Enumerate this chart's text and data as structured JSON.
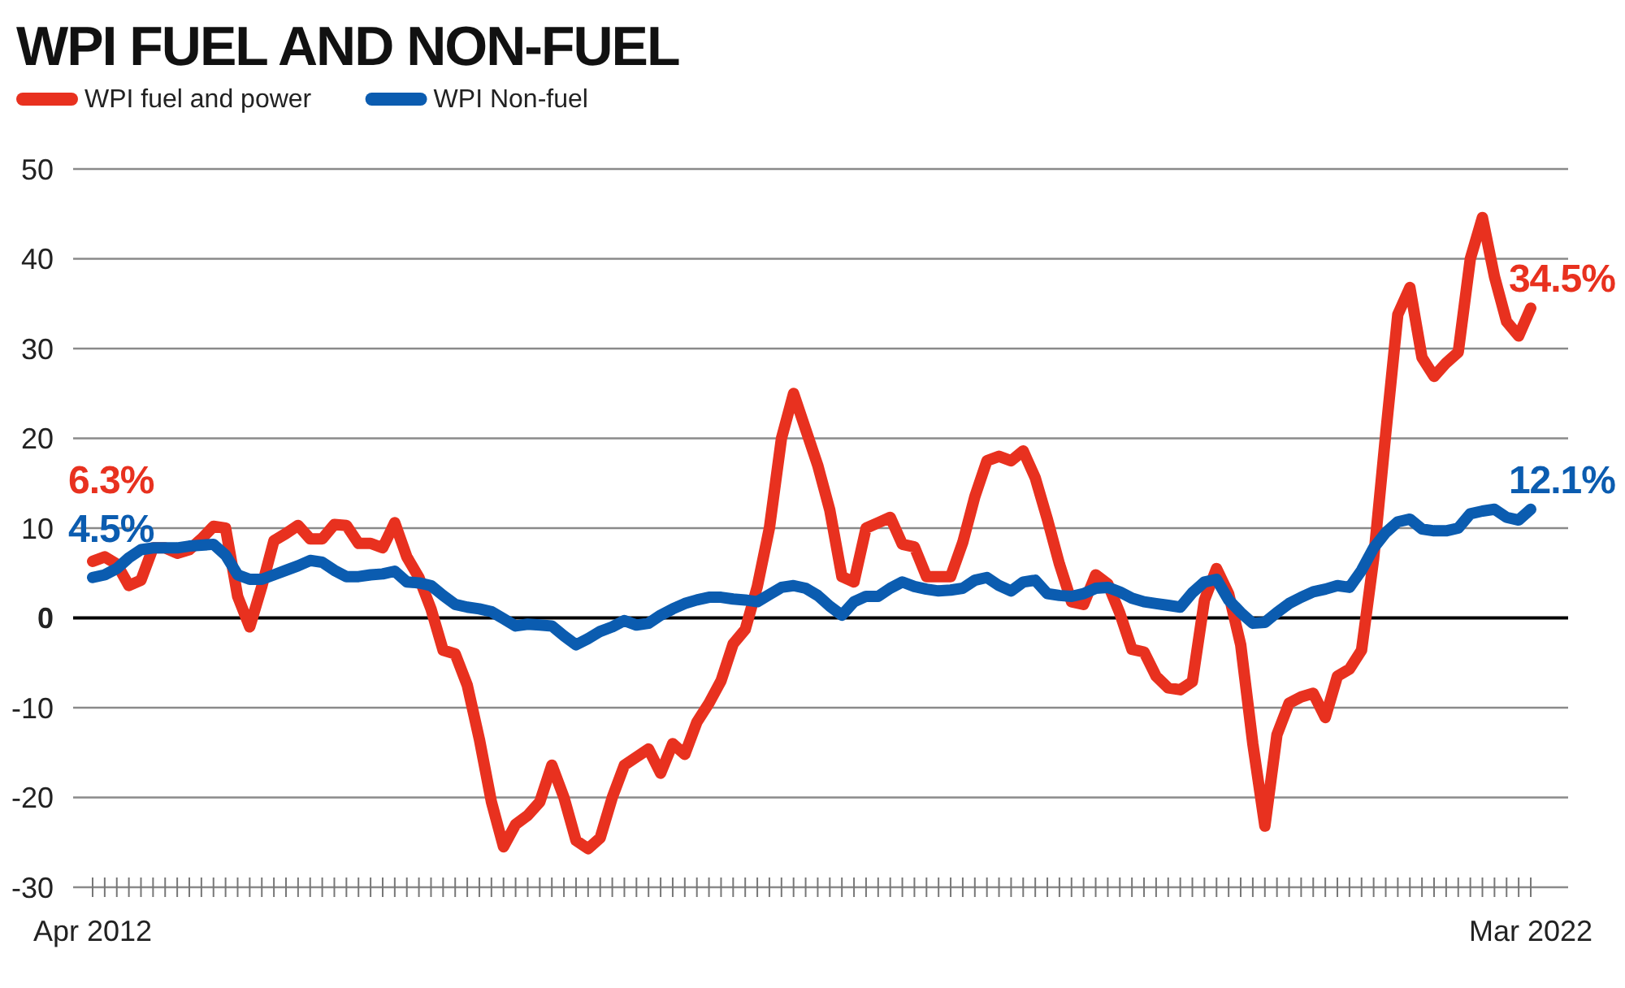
{
  "chart_data": {
    "type": "line",
    "title": "WPI FUEL AND NON-FUEL",
    "categories": [
      "Apr 2012",
      null,
      null,
      null,
      null,
      null,
      null,
      null,
      null,
      null,
      null,
      null,
      null,
      null,
      null,
      null,
      null,
      null,
      null,
      null,
      null,
      null,
      null,
      null,
      null,
      null,
      null,
      null,
      null,
      null,
      null,
      null,
      null,
      null,
      null,
      null,
      null,
      null,
      null,
      null,
      null,
      null,
      null,
      null,
      null,
      null,
      null,
      null,
      null,
      null,
      null,
      null,
      null,
      null,
      null,
      null,
      null,
      null,
      null,
      null,
      null,
      null,
      null,
      null,
      null,
      null,
      null,
      null,
      null,
      null,
      null,
      null,
      null,
      null,
      null,
      null,
      null,
      null,
      null,
      null,
      null,
      null,
      null,
      null,
      null,
      null,
      null,
      null,
      null,
      null,
      null,
      null,
      null,
      null,
      null,
      null,
      null,
      null,
      null,
      null,
      null,
      null,
      null,
      null,
      null,
      null,
      null,
      null,
      null,
      null,
      null,
      null,
      null,
      null,
      null,
      null,
      null,
      null,
      null,
      "Mar 2022"
    ],
    "series": [
      {
        "name": "WPI fuel and power",
        "color": "#e8311f",
        "values": [
          6.3,
          6.8,
          6.0,
          3.6,
          4.2,
          7.8,
          7.8,
          7.2,
          7.6,
          8.8,
          10.2,
          10.0,
          2.4,
          -1.0,
          3.5,
          8.6,
          9.4,
          10.3,
          8.8,
          8.8,
          10.4,
          10.3,
          8.3,
          8.3,
          7.8,
          10.6,
          6.8,
          4.5,
          1.0,
          -3.6,
          -4.0,
          -7.5,
          -13.5,
          -20.5,
          -25.5,
          -23.0,
          -22.0,
          -20.5,
          -16.4,
          -20.0,
          -24.8,
          -25.7,
          -24.5,
          -20.0,
          -16.4,
          -15.5,
          -14.6,
          -17.3,
          -14.0,
          -15.2,
          -11.6,
          -9.5,
          -7.0,
          -2.9,
          -1.3,
          3.5,
          10.0,
          20.0,
          25.0,
          21.0,
          17.0,
          12.0,
          4.6,
          4.0,
          10.0,
          10.6,
          11.2,
          8.2,
          7.9,
          4.6,
          4.6,
          4.6,
          8.4,
          13.5,
          17.5,
          18.0,
          17.5,
          18.6,
          15.6,
          11.0,
          6.0,
          1.8,
          1.5,
          4.8,
          3.8,
          0.5,
          -3.5,
          -3.8,
          -6.5,
          -7.8,
          -8.0,
          -7.1,
          2.0,
          5.5,
          2.7,
          -3.0,
          -14.0,
          -23.2,
          -13.0,
          -9.5,
          -8.8,
          -8.4,
          -11.1,
          -6.5,
          -5.7,
          -3.6,
          6.6,
          20.5,
          33.8,
          36.8,
          29.0,
          26.9,
          28.4,
          29.6,
          40.0,
          44.6,
          38.0,
          33.0,
          31.4,
          34.5
        ],
        "value_labels": [
          "6.3%",
          null,
          null,
          null,
          null,
          null,
          null,
          null,
          null,
          null,
          null,
          null,
          null,
          null,
          null,
          null,
          null,
          null,
          null,
          null,
          null,
          null,
          null,
          null,
          null,
          null,
          null,
          null,
          null,
          null,
          null,
          null,
          null,
          null,
          null,
          null,
          null,
          null,
          null,
          null,
          null,
          null,
          null,
          null,
          null,
          null,
          null,
          null,
          null,
          null,
          null,
          null,
          null,
          null,
          null,
          null,
          null,
          null,
          null,
          null,
          null,
          null,
          null,
          null,
          null,
          null,
          null,
          null,
          null,
          null,
          null,
          null,
          null,
          null,
          null,
          null,
          null,
          null,
          null,
          null,
          null,
          null,
          null,
          null,
          null,
          null,
          null,
          null,
          null,
          null,
          null,
          null,
          null,
          null,
          null,
          null,
          null,
          null,
          null,
          null,
          null,
          null,
          null,
          null,
          null,
          null,
          null,
          null,
          null,
          null,
          null,
          null,
          null,
          null,
          null,
          null,
          null,
          null,
          null,
          "34.5%"
        ]
      },
      {
        "name": "WPI Non-fuel",
        "color": "#0b5cb0",
        "values": [
          4.5,
          4.8,
          5.5,
          6.7,
          7.6,
          7.8,
          7.8,
          7.8,
          8.0,
          8.1,
          8.2,
          7.0,
          4.8,
          4.3,
          4.3,
          4.8,
          5.3,
          5.8,
          6.4,
          6.2,
          5.3,
          4.6,
          4.6,
          4.8,
          4.9,
          5.2,
          4.0,
          3.9,
          3.6,
          2.5,
          1.5,
          1.2,
          1.0,
          0.7,
          -0.1,
          -0.9,
          -0.7,
          -0.8,
          -0.9,
          -2.0,
          -3.0,
          -2.3,
          -1.5,
          -1.0,
          -0.3,
          -0.8,
          -0.6,
          0.3,
          1.0,
          1.6,
          2.0,
          2.3,
          2.3,
          2.1,
          2.0,
          1.8,
          2.6,
          3.4,
          3.6,
          3.3,
          2.5,
          1.3,
          0.3,
          1.8,
          2.4,
          2.4,
          3.3,
          4.0,
          3.5,
          3.2,
          3.0,
          3.1,
          3.3,
          4.2,
          4.5,
          3.6,
          3.0,
          4.0,
          4.2,
          2.7,
          2.5,
          2.4,
          2.7,
          3.3,
          3.4,
          2.9,
          2.2,
          1.8,
          1.6,
          1.4,
          1.2,
          2.8,
          4.0,
          4.3,
          2.0,
          0.6,
          -0.6,
          -0.5,
          0.6,
          1.6,
          2.3,
          2.9,
          3.2,
          3.6,
          3.4,
          5.3,
          7.8,
          9.5,
          10.7,
          11.0,
          9.9,
          9.7,
          9.7,
          10.0,
          11.6,
          11.9,
          12.1,
          11.2,
          10.9,
          12.1
        ],
        "value_labels": [
          "4.5%",
          null,
          null,
          null,
          null,
          null,
          null,
          null,
          null,
          null,
          null,
          null,
          null,
          null,
          null,
          null,
          null,
          null,
          null,
          null,
          null,
          null,
          null,
          null,
          null,
          null,
          null,
          null,
          null,
          null,
          null,
          null,
          null,
          null,
          null,
          null,
          null,
          null,
          null,
          null,
          null,
          null,
          null,
          null,
          null,
          null,
          null,
          null,
          null,
          null,
          null,
          null,
          null,
          null,
          null,
          null,
          null,
          null,
          null,
          null,
          null,
          null,
          null,
          null,
          null,
          null,
          null,
          null,
          null,
          null,
          null,
          null,
          null,
          null,
          null,
          null,
          null,
          null,
          null,
          null,
          null,
          null,
          null,
          null,
          null,
          null,
          null,
          null,
          null,
          null,
          null,
          null,
          null,
          null,
          null,
          null,
          null,
          null,
          null,
          null,
          null,
          null,
          null,
          null,
          null,
          null,
          null,
          null,
          null,
          null,
          null,
          null,
          null,
          null,
          null,
          null,
          null,
          null,
          null,
          "12.1%"
        ]
      }
    ],
    "ylim": [
      -30,
      50
    ],
    "yticks": [
      -30,
      -20,
      -10,
      0,
      10,
      20,
      30,
      40,
      50
    ],
    "grid": "y",
    "legend": "top left",
    "marker": "none",
    "line_style": "solid"
  }
}
